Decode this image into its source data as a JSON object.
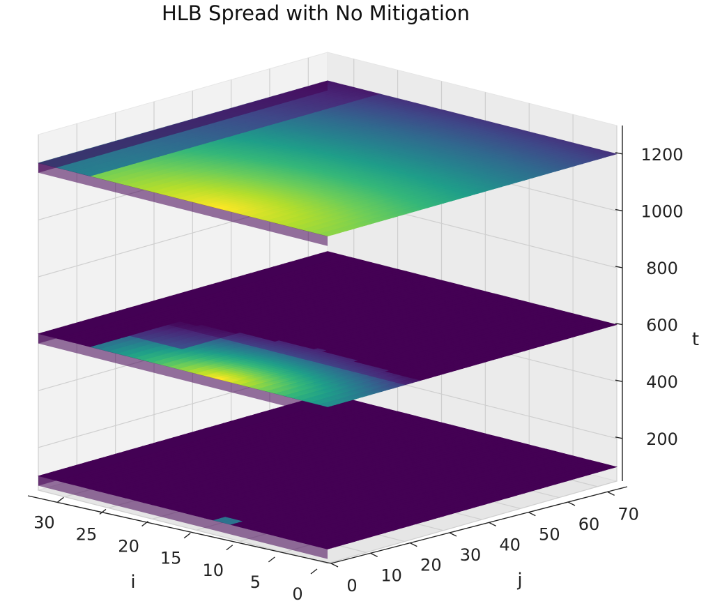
{
  "chart_data": {
    "type": "heatmap",
    "plot": "3d",
    "title": "HLB Spread with No Mitigation",
    "xlabel": "i",
    "ylabel": "j",
    "zlabel": "t",
    "xticks": [
      "0",
      "5",
      "10",
      "15",
      "20",
      "25",
      "30"
    ],
    "yticks": [
      "0",
      "10",
      "20",
      "30",
      "40",
      "50",
      "60",
      "70"
    ],
    "zticks": [
      "200",
      "400",
      "600",
      "800",
      "1000",
      "1200"
    ],
    "xlim": [
      0,
      33
    ],
    "ylim": [
      0,
      75
    ],
    "zlim": [
      50,
      1300
    ],
    "colormap": "viridis",
    "grid": true,
    "layers": [
      {
        "t": 100,
        "infected_region": "single infected cell near i≈12, j≈0; rest uninfected"
      },
      {
        "t": 600,
        "infected_region": "infection spread from origin cell over roughly i 0–33, j 0–25; peak near i≈12, j≈0"
      },
      {
        "t": 1200,
        "infected_region": "infection across the full grid, decreasing with j; peak near i≈12, j≈0"
      }
    ],
    "colors": {
      "low": "#440154",
      "high": "#fde725"
    }
  }
}
